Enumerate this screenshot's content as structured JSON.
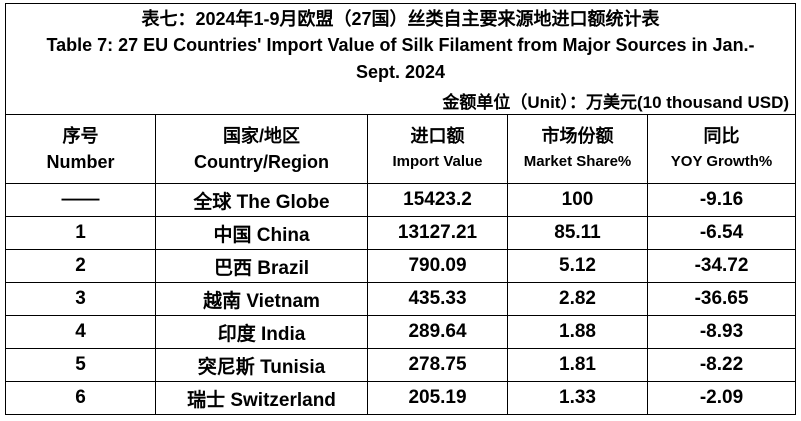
{
  "title_zh": "表七：2024年1-9月欧盟（27国）丝类自主要来源地进口额统计表",
  "title_en": "Table 7: 27 EU Countries' Import Value of Silk Filament from Major Sources in Jan.-Sept. 2024",
  "unit": "金额单位（Unit）：万美元(10 thousand USD)",
  "headers": [
    {
      "zh": "序号",
      "en": "Number"
    },
    {
      "zh": "国家/地区",
      "en": "Country/Region"
    },
    {
      "zh": "进口额",
      "en": "Import Value"
    },
    {
      "zh": "市场份额",
      "en": "Market Share%"
    },
    {
      "zh": "同比",
      "en": "YOY Growth%"
    }
  ],
  "rows": [
    [
      "——",
      "全球 The Globe",
      15423.2,
      100,
      -9.16
    ],
    [
      1,
      "中国 China",
      13127.21,
      85.11,
      -6.54
    ],
    [
      2,
      "巴西 Brazil",
      790.09,
      5.12,
      -34.72
    ],
    [
      3,
      "越南 Vietnam",
      435.33,
      2.82,
      -36.65
    ],
    [
      4,
      "印度 India",
      289.64,
      1.88,
      -8.93
    ],
    [
      5,
      "突尼斯 Tunisia",
      278.75,
      1.81,
      -8.22
    ],
    [
      6,
      "瑞士 Switzerland",
      205.19,
      1.33,
      -2.09
    ]
  ]
}
